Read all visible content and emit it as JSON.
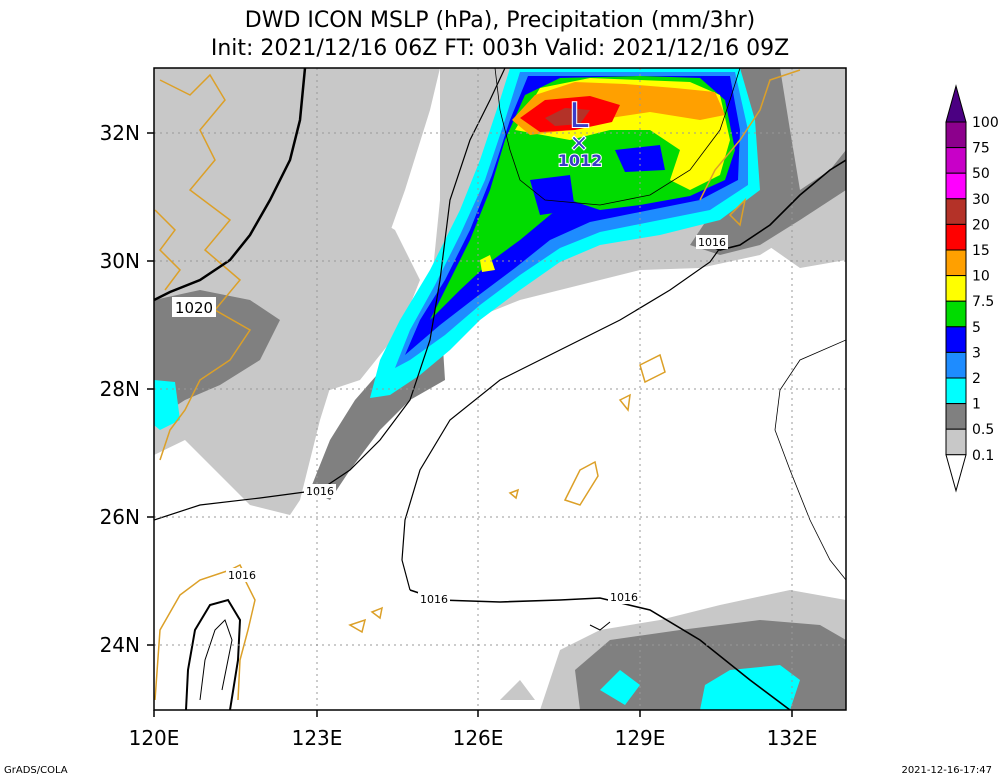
{
  "title": {
    "line1": "DWD ICON MSLP (hPa), Precipitation (mm/3hr)",
    "line2": "Init: 2021/12/16 06Z  FT: 003h  Valid: 2021/12/16 09Z"
  },
  "map": {
    "lon_labels": [
      "120E",
      "123E",
      "126E",
      "129E",
      "132E"
    ],
    "lat_labels": [
      "32N",
      "30N",
      "28N",
      "26N",
      "24N"
    ],
    "isobar_labels": [
      "1020",
      "1016",
      "1016",
      "1016",
      "1016",
      "1016"
    ],
    "low_marker": {
      "symbol": "L",
      "cross": "×",
      "value": "1012"
    }
  },
  "colorbar": {
    "labels": [
      "100",
      "75",
      "50",
      "30",
      "20",
      "15",
      "10",
      "7.5",
      "5",
      "3",
      "2",
      "1",
      "0.5",
      "0.1"
    ],
    "colors": [
      "#8c008c",
      "#c800c8",
      "#ff00ff",
      "#b43228",
      "#ff0000",
      "#ffa000",
      "#ffff00",
      "#00dc00",
      "#0000ff",
      "#1e8cff",
      "#00ffff",
      "#808080",
      "#c8c8c8",
      "#ffffff"
    ],
    "top_arrow_color": "#4b0082"
  },
  "footer": {
    "left": "GrADS/COLA",
    "right": "2021-12-16-17:47"
  }
}
